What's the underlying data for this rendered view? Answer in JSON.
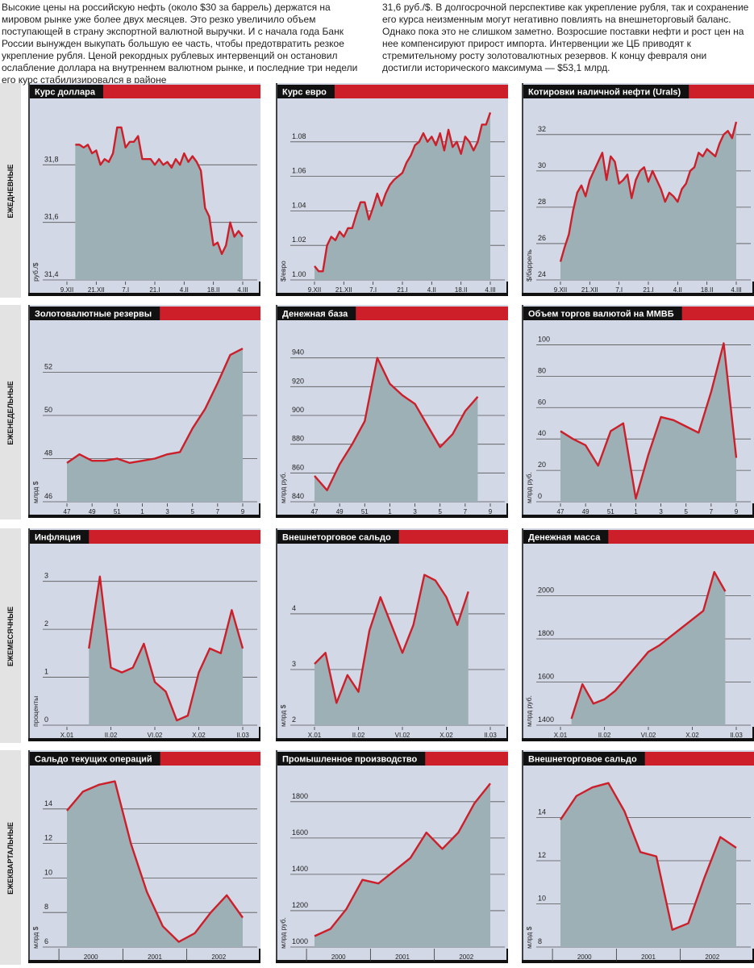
{
  "intro": [
    "Высокие цены на российскую нефть (около $30 за баррель) держатся на мировом рынке уже более двух месяцев. Это резко увеличило объем поступающей в страну экспортной валютной выручки. И с начала года Банк России вынужден выкупать большую ее часть, чтобы предотвратить резкое укрепление рубля. Ценой рекордных рублевых интервенций он остановил ослабление доллара на внутреннем валютном рынке, и последние три недели его курс стабилизировался в районе",
    "31,6 руб./$. В долгосрочной перспективе как укрепление рубля, так и сохранение его курса неизменным могут негативно повлиять на внешнеторговый баланс. Однако пока это не слишком заметно. Возросшие поставки нефти и рост цен на нее компенсируют прирост импорта. Интервенции же ЦБ приводят к стремительному росту золотовалютных резервов. К концу февраля они достигли исторического максимума — $53,1 млрд."
  ],
  "row_labels": [
    "ЕЖЕДНЕВНЫЕ",
    "ЕЖЕНЕДЕЛЬНЫЕ",
    "ЕЖЕМЕСЯЧНЫЕ",
    "ЕЖЕКВАРТАЛЬНЫЕ"
  ],
  "chart_data": [
    {
      "type": "area",
      "title": "Курс доллара",
      "ylabel": "руб./$",
      "color": "#cc1f2a",
      "categories": [
        "9.XII",
        null,
        null,
        null,
        null,
        null,
        null,
        "21.XII",
        null,
        null,
        null,
        null,
        null,
        null,
        "7.I",
        null,
        null,
        null,
        null,
        null,
        null,
        "21.I",
        null,
        null,
        null,
        null,
        null,
        null,
        "4.II",
        null,
        null,
        null,
        null,
        null,
        null,
        "18.II",
        null,
        null,
        null,
        null,
        null,
        null,
        "4.III"
      ],
      "values": [
        null,
        null,
        31.87,
        31.87,
        31.86,
        31.87,
        31.84,
        31.85,
        31.8,
        31.82,
        31.81,
        31.84,
        31.93,
        31.93,
        31.86,
        31.88,
        31.88,
        31.9,
        31.82,
        31.82,
        31.82,
        31.8,
        31.82,
        31.8,
        31.81,
        31.79,
        31.82,
        31.8,
        31.84,
        31.81,
        31.83,
        31.81,
        31.78,
        31.65,
        31.62,
        31.52,
        31.53,
        31.49,
        31.52,
        31.6,
        31.55,
        31.57,
        31.55
      ],
      "ylim": [
        31.4,
        32.0
      ],
      "yticks": [
        {
          "value": 31.4,
          "label": "31,4"
        },
        {
          "value": 31.6,
          "label": "31,6"
        },
        {
          "value": 31.8,
          "label": "31,8"
        }
      ]
    },
    {
      "type": "area",
      "title": "Курс евро",
      "ylabel": "$/евро",
      "color": "#cc1f2a",
      "categories": [
        "9.XII",
        null,
        null,
        null,
        null,
        null,
        null,
        "21.XII",
        null,
        null,
        null,
        null,
        null,
        null,
        "7.I",
        null,
        null,
        null,
        null,
        null,
        null,
        "21.I",
        null,
        null,
        null,
        null,
        null,
        null,
        "4.II",
        null,
        null,
        null,
        null,
        null,
        null,
        "18.II",
        null,
        null,
        null,
        null,
        null,
        null,
        "4.III"
      ],
      "values": [
        1.008,
        1.005,
        1.005,
        1.02,
        1.025,
        1.023,
        1.028,
        1.025,
        1.03,
        1.03,
        1.038,
        1.045,
        1.045,
        1.035,
        1.042,
        1.05,
        1.043,
        1.05,
        1.055,
        1.058,
        1.06,
        1.062,
        1.068,
        1.072,
        1.078,
        1.08,
        1.085,
        1.08,
        1.083,
        1.078,
        1.085,
        1.075,
        1.087,
        1.077,
        1.08,
        1.073,
        1.083,
        1.08,
        1.075,
        1.08,
        1.09,
        1.09,
        1.097
      ],
      "ylim": [
        1.0,
        1.1
      ],
      "yticks": [
        {
          "value": 1.0,
          "label": "1.00"
        },
        1.02,
        1.04,
        1.06,
        1.08
      ]
    },
    {
      "type": "area",
      "title": "Котировки наличной нефти (Urals)",
      "ylabel": "$/баррель",
      "color": "#cc1f2a",
      "categories": [
        "9.XII",
        null,
        null,
        null,
        null,
        null,
        null,
        "21.XII",
        null,
        null,
        null,
        null,
        null,
        null,
        "7.I",
        null,
        null,
        null,
        null,
        null,
        null,
        "21.I",
        null,
        null,
        null,
        null,
        null,
        null,
        "4.II",
        null,
        null,
        null,
        null,
        null,
        null,
        "18.II",
        null,
        null,
        null,
        null,
        null,
        null,
        "4.III"
      ],
      "values": [
        25,
        25.8,
        26.5,
        27.8,
        28.8,
        29.2,
        28.6,
        29.5,
        30,
        30.5,
        31,
        29.5,
        30.8,
        30.5,
        29.3,
        29.5,
        29.8,
        28.5,
        29.5,
        30,
        30.2,
        29.4,
        30,
        29.5,
        29,
        28.3,
        28.8,
        28.6,
        28.3,
        29,
        29.3,
        30,
        30.2,
        31,
        30.8,
        31.2,
        31,
        30.8,
        31.5,
        32,
        32.2,
        31.8,
        32.7
      ],
      "ylim": [
        24,
        33.5
      ],
      "yticks": [
        24,
        26,
        28,
        30,
        32
      ]
    },
    {
      "type": "area",
      "title": "Золотовалютные резервы",
      "ylabel": "млрд $",
      "color": "#cc1f2a",
      "categories": [
        "47",
        null,
        "49",
        null,
        "51",
        null,
        "1",
        null,
        "3",
        null,
        "5",
        null,
        "7",
        null,
        "9"
      ],
      "values": [
        47.8,
        48.2,
        47.9,
        47.9,
        48.0,
        47.8,
        47.9,
        48.0,
        48.2,
        48.3,
        49.4,
        50.3,
        51.5,
        52.8,
        53.1
      ],
      "ylim": [
        46,
        54
      ],
      "yticks": [
        46,
        48,
        50,
        52
      ]
    },
    {
      "type": "area",
      "title": "Денежная база",
      "ylabel": "млрд руб.",
      "color": "#cc1f2a",
      "categories": [
        "47",
        null,
        "49",
        null,
        "51",
        null,
        "1",
        null,
        "3",
        null,
        "5",
        null,
        "7",
        null,
        "9"
      ],
      "values": [
        858,
        848,
        866,
        880,
        896,
        940,
        922,
        914,
        908,
        893,
        878,
        887,
        903,
        913,
        null
      ],
      "ylim": [
        840,
        960
      ],
      "yticks": [
        840,
        860,
        880,
        900,
        920,
        940
      ]
    },
    {
      "type": "area",
      "title": "Объем торгов валютой на ММВБ",
      "ylabel": "млрд руб.",
      "color": "#cc1f2a",
      "categories": [
        "47",
        null,
        "49",
        null,
        "51",
        null,
        "1",
        null,
        "3",
        null,
        "5",
        null,
        "7",
        null,
        "9"
      ],
      "values": [
        45,
        40,
        36,
        23,
        45,
        50,
        2,
        30,
        54,
        52,
        48,
        44,
        70,
        101,
        28
      ],
      "ylim": [
        0,
        110
      ],
      "yticks": [
        0,
        20,
        40,
        60,
        80,
        100
      ]
    },
    {
      "type": "area",
      "title": "Инфляция",
      "ylabel": "проценты",
      "color": "#cc1f2a",
      "categories": [
        "X.01",
        null,
        null,
        null,
        "II.02",
        null,
        null,
        null,
        "VI.02",
        null,
        null,
        null,
        "X.02",
        null,
        null,
        null,
        "II.03"
      ],
      "values": [
        null,
        null,
        1.6,
        3.1,
        1.2,
        1.1,
        1.2,
        1.7,
        0.9,
        0.7,
        0.1,
        0.2,
        1.1,
        1.6,
        1.5,
        2.4,
        1.6
      ],
      "ylim": [
        0,
        3.6
      ],
      "yticks": [
        0,
        1,
        2,
        3
      ]
    },
    {
      "type": "area",
      "title": "Внешнеторговое сальдо",
      "ylabel": "млрд $",
      "color": "#cc1f2a",
      "categories": [
        "X.01",
        null,
        null,
        null,
        "II.02",
        null,
        null,
        null,
        "VI.02",
        null,
        null,
        null,
        "X.02",
        null,
        null,
        null,
        "II.03"
      ],
      "values": [
        3.1,
        3.3,
        2.4,
        2.9,
        2.6,
        3.7,
        4.3,
        3.8,
        3.3,
        3.8,
        4.7,
        4.6,
        4.3,
        3.8,
        4.4,
        null,
        null
      ],
      "ylim": [
        2,
        5.1
      ],
      "yticks": [
        2,
        3,
        4
      ]
    },
    {
      "type": "area",
      "title": "Денежная масса",
      "ylabel": "млрд руб.",
      "color": "#cc1f2a",
      "categories": [
        "X.01",
        null,
        null,
        null,
        "II.02",
        null,
        null,
        null,
        "VI.02",
        null,
        null,
        null,
        "X.02",
        null,
        null,
        null,
        "II.03"
      ],
      "values": [
        null,
        1430,
        1590,
        1500,
        1520,
        1560,
        1620,
        1680,
        1740,
        1770,
        1810,
        1850,
        1890,
        1930,
        2110,
        2020,
        null
      ],
      "ylim": [
        1400,
        2200
      ],
      "yticks": [
        1400,
        1600,
        1800,
        2000
      ]
    },
    {
      "type": "area",
      "title": "Сальдо текущих операций",
      "ylabel": "млрд $",
      "color": "#cc1f2a",
      "grouped_x": true,
      "categories": [
        "2000",
        null,
        null,
        null,
        "2001",
        null,
        null,
        null,
        "2002",
        null,
        null,
        null
      ],
      "values": [
        13.9,
        15.0,
        15.4,
        15.6,
        12.0,
        9.2,
        7.2,
        6.3,
        6.8,
        8.0,
        9.0,
        7.7
      ],
      "ylim": [
        6,
        16
      ],
      "yticks": [
        6,
        8,
        10,
        12,
        14
      ]
    },
    {
      "type": "area",
      "title": "Промышленное производство",
      "ylabel": "млрд руб.",
      "color": "#cc1f2a",
      "grouped_x": true,
      "categories": [
        "2000",
        null,
        null,
        null,
        "2001",
        null,
        null,
        null,
        "2002",
        null,
        null,
        null
      ],
      "values": [
        1060,
        1100,
        1210,
        1370,
        1350,
        1420,
        1490,
        1630,
        1540,
        1630,
        1790,
        1900
      ],
      "ylim": [
        1000,
        1950
      ],
      "yticks": [
        1000,
        1200,
        1400,
        1600,
        1800
      ]
    },
    {
      "type": "area",
      "title": "Внешнеторговое сальдо",
      "ylabel": "млрд $",
      "color": "#cc1f2a",
      "grouped_x": true,
      "categories": [
        "2000",
        null,
        null,
        null,
        "2001",
        null,
        null,
        null,
        "2002",
        null,
        null,
        null
      ],
      "values": [
        13.9,
        15.0,
        15.4,
        15.6,
        14.3,
        12.4,
        12.2,
        8.8,
        9.1,
        11.2,
        13.1,
        12.6
      ],
      "ylim": [
        8,
        16
      ],
      "yticks": [
        8,
        10,
        12,
        14
      ]
    }
  ]
}
